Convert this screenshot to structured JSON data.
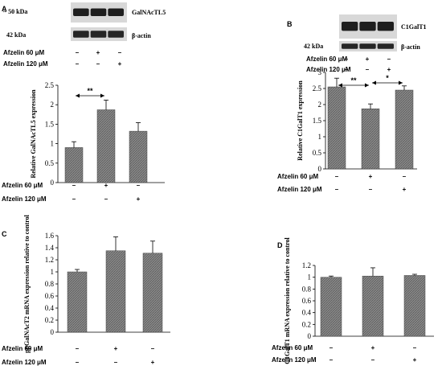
{
  "colors": {
    "bar_fill": "#8a8a8a",
    "bar_hatch": "#5a5a5a",
    "axis": "#000000",
    "band": "#1e1e1e",
    "blot_bg": "#d8d8d8"
  },
  "chart_data": [
    {
      "panel": "A",
      "type": "bar",
      "blot": {
        "target_label": "GalNAcTL5",
        "target_size": "~ 50 kDa",
        "control_label": "β-actin",
        "control_size": "42 kDa",
        "conditions": [
          [
            "–",
            "+",
            "–"
          ],
          [
            "–",
            "–",
            "+"
          ]
        ]
      },
      "treatment_labels": [
        "Afzelin 60 μM",
        "Afzelin 120 μM"
      ],
      "conditions": [
        [
          "–",
          "+",
          "–"
        ],
        [
          "–",
          "–",
          "+"
        ]
      ],
      "values": [
        0.9,
        1.87,
        1.32
      ],
      "errors": [
        0.15,
        0.25,
        0.22
      ],
      "ylabel": "Relative GalNAcTL5 expression",
      "ylim": [
        0,
        2.5
      ],
      "yticks": [
        "0",
        "0.5",
        "1",
        "1.5",
        "2",
        "2.5"
      ],
      "significance": [
        {
          "from": 0,
          "to": 1,
          "label": "**"
        }
      ]
    },
    {
      "panel": "B",
      "type": "bar",
      "blot": {
        "target_label": "C1GalT1",
        "control_label": "β-actin",
        "control_size": "42 kDa",
        "conditions": [
          [
            "–",
            "+",
            "–"
          ],
          [
            "–",
            "–",
            "+"
          ]
        ]
      },
      "treatment_labels": [
        "Afzelin 60 μM",
        "Afzelin 120 μM"
      ],
      "conditions": [
        [
          "–",
          "+",
          "–"
        ],
        [
          "–",
          "–",
          "+"
        ]
      ],
      "values": [
        2.55,
        1.87,
        2.45
      ],
      "errors": [
        0.27,
        0.15,
        0.13
      ],
      "ylabel": "Relative C1GalT1 expression",
      "ylim": [
        0,
        3
      ],
      "yticks": [
        "0",
        "0.5",
        "1",
        "1.5",
        "2",
        "2.5",
        "3"
      ],
      "significance": [
        {
          "from": 0,
          "to": 1,
          "label": "**"
        },
        {
          "from": 1,
          "to": 2,
          "label": "*"
        }
      ]
    },
    {
      "panel": "C",
      "type": "bar",
      "treatment_labels": [
        "Afzelin 60 μM",
        "Afzelin 120 μM"
      ],
      "conditions": [
        [
          "–",
          "+",
          "–"
        ],
        [
          "–",
          "–",
          "+"
        ]
      ],
      "values": [
        1.0,
        1.35,
        1.31
      ],
      "errors": [
        0.04,
        0.23,
        0.2
      ],
      "ylabel": "ppGalNAcT2 mRNA expression relative to control",
      "ylim": [
        0,
        1.6
      ],
      "yticks": [
        "0",
        "0.2",
        "0.4",
        "0.6",
        "0.8",
        "1",
        "1.2",
        "1.4",
        "1.6"
      ]
    },
    {
      "panel": "D",
      "type": "bar",
      "treatment_labels": [
        "Afzelin 60 μM",
        "Afzelin 120 μM"
      ],
      "conditions": [
        [
          "–",
          "+",
          "–"
        ],
        [
          "–",
          "–",
          "+"
        ]
      ],
      "values": [
        1.0,
        1.02,
        1.03
      ],
      "errors": [
        0.02,
        0.14,
        0.02
      ],
      "ylabel": "C1GalT1 mRNA expression relative to control",
      "ylim": [
        0,
        1.2
      ],
      "yticks": [
        "0",
        "0.2",
        "0.4",
        "0.6",
        "0.8",
        "1",
        "1.2"
      ]
    }
  ]
}
